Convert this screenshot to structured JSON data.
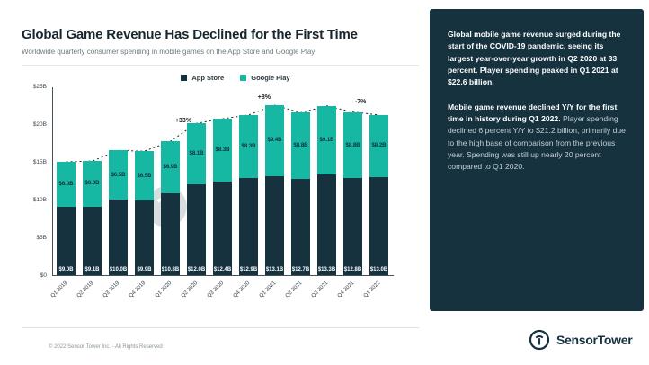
{
  "page": {
    "title": "Global Game Revenue Has Declined for the First Time",
    "subtitle": "Worldwide quarterly consumer spending in mobile games on the App Store and Google Play"
  },
  "legend": [
    {
      "label": "App Store",
      "color": "#16323f"
    },
    {
      "label": "Google Play",
      "color": "#17b8a3"
    }
  ],
  "chart_data": {
    "type": "bar",
    "stacked": true,
    "title": "Global Game Revenue Has Declined for the First Time",
    "subtitle": "Worldwide quarterly consumer spending in mobile games on the App Store and Google Play",
    "categories": [
      "Q1 2019",
      "Q2 2019",
      "Q3 2019",
      "Q4 2019",
      "Q1 2020",
      "Q2 2020",
      "Q3 2020",
      "Q4 2020",
      "Q1 2021",
      "Q2 2021",
      "Q3 2021",
      "Q4 2021",
      "Q1 2022"
    ],
    "series": [
      {
        "name": "App Store",
        "color": "#16323f",
        "values": [
          9.0,
          9.1,
          10.0,
          9.9,
          10.8,
          12.0,
          12.4,
          12.9,
          13.1,
          12.7,
          13.3,
          12.8,
          13.0
        ],
        "labels": [
          "$9.0B",
          "$9.1B",
          "$10.0B",
          "$9.9B",
          "$10.8B",
          "$12.0B",
          "$12.4B",
          "$12.9B",
          "$13.1B",
          "$12.7B",
          "$13.3B",
          "$12.8B",
          "$13.0B"
        ]
      },
      {
        "name": "Google Play",
        "color": "#17b8a3",
        "values": [
          6.0,
          6.0,
          6.5,
          6.5,
          6.9,
          8.1,
          8.3,
          8.3,
          9.4,
          8.8,
          9.1,
          8.8,
          8.2
        ],
        "labels": [
          "$6.0B",
          "$6.0B",
          "$6.5B",
          "$6.5B",
          "$6.9B",
          "$8.1B",
          "$8.3B",
          "$8.3B",
          "$9.4B",
          "$8.8B",
          "$9.1B",
          "$8.8B",
          "$8.2B"
        ]
      }
    ],
    "y_ticks": [
      "$0",
      "$5B",
      "$10B",
      "$15B",
      "$20B",
      "$25B"
    ],
    "y_tick_values": [
      0,
      5,
      10,
      15,
      20,
      25
    ],
    "ylim": [
      0,
      25
    ],
    "ylabel": "",
    "xlabel": "",
    "grid": false,
    "legend_position": "top-center",
    "trendline": "dotted total line across stacked bar tops",
    "annotations": [
      {
        "label": "+33%",
        "index": 4.5
      },
      {
        "label": "+8%",
        "index": 7.6
      },
      {
        "label": "-7%",
        "index": 11.3
      }
    ]
  },
  "panel": {
    "p1_bold": "Global mobile game revenue surged during the start of the COVID-19 pandemic, seeing its largest year-over-year growth in Q2 2020 at 33 percent. Player spending peaked in Q1 2021 at $22.6 billion.",
    "p2_bold": "Mobile game revenue declined Y/Y for the first time in history during Q1 2022.",
    "p2_rest": " Player spending declined 6 percent Y/Y to $21.2 billion, primarily due to the high base of comparison from the previous year. Spending was still up nearly 20 percent compared to Q1 2020."
  },
  "footer": {
    "copyright": "© 2022 Sensor Tower Inc. - All Rights Reserved",
    "brand": "SensorTower"
  }
}
